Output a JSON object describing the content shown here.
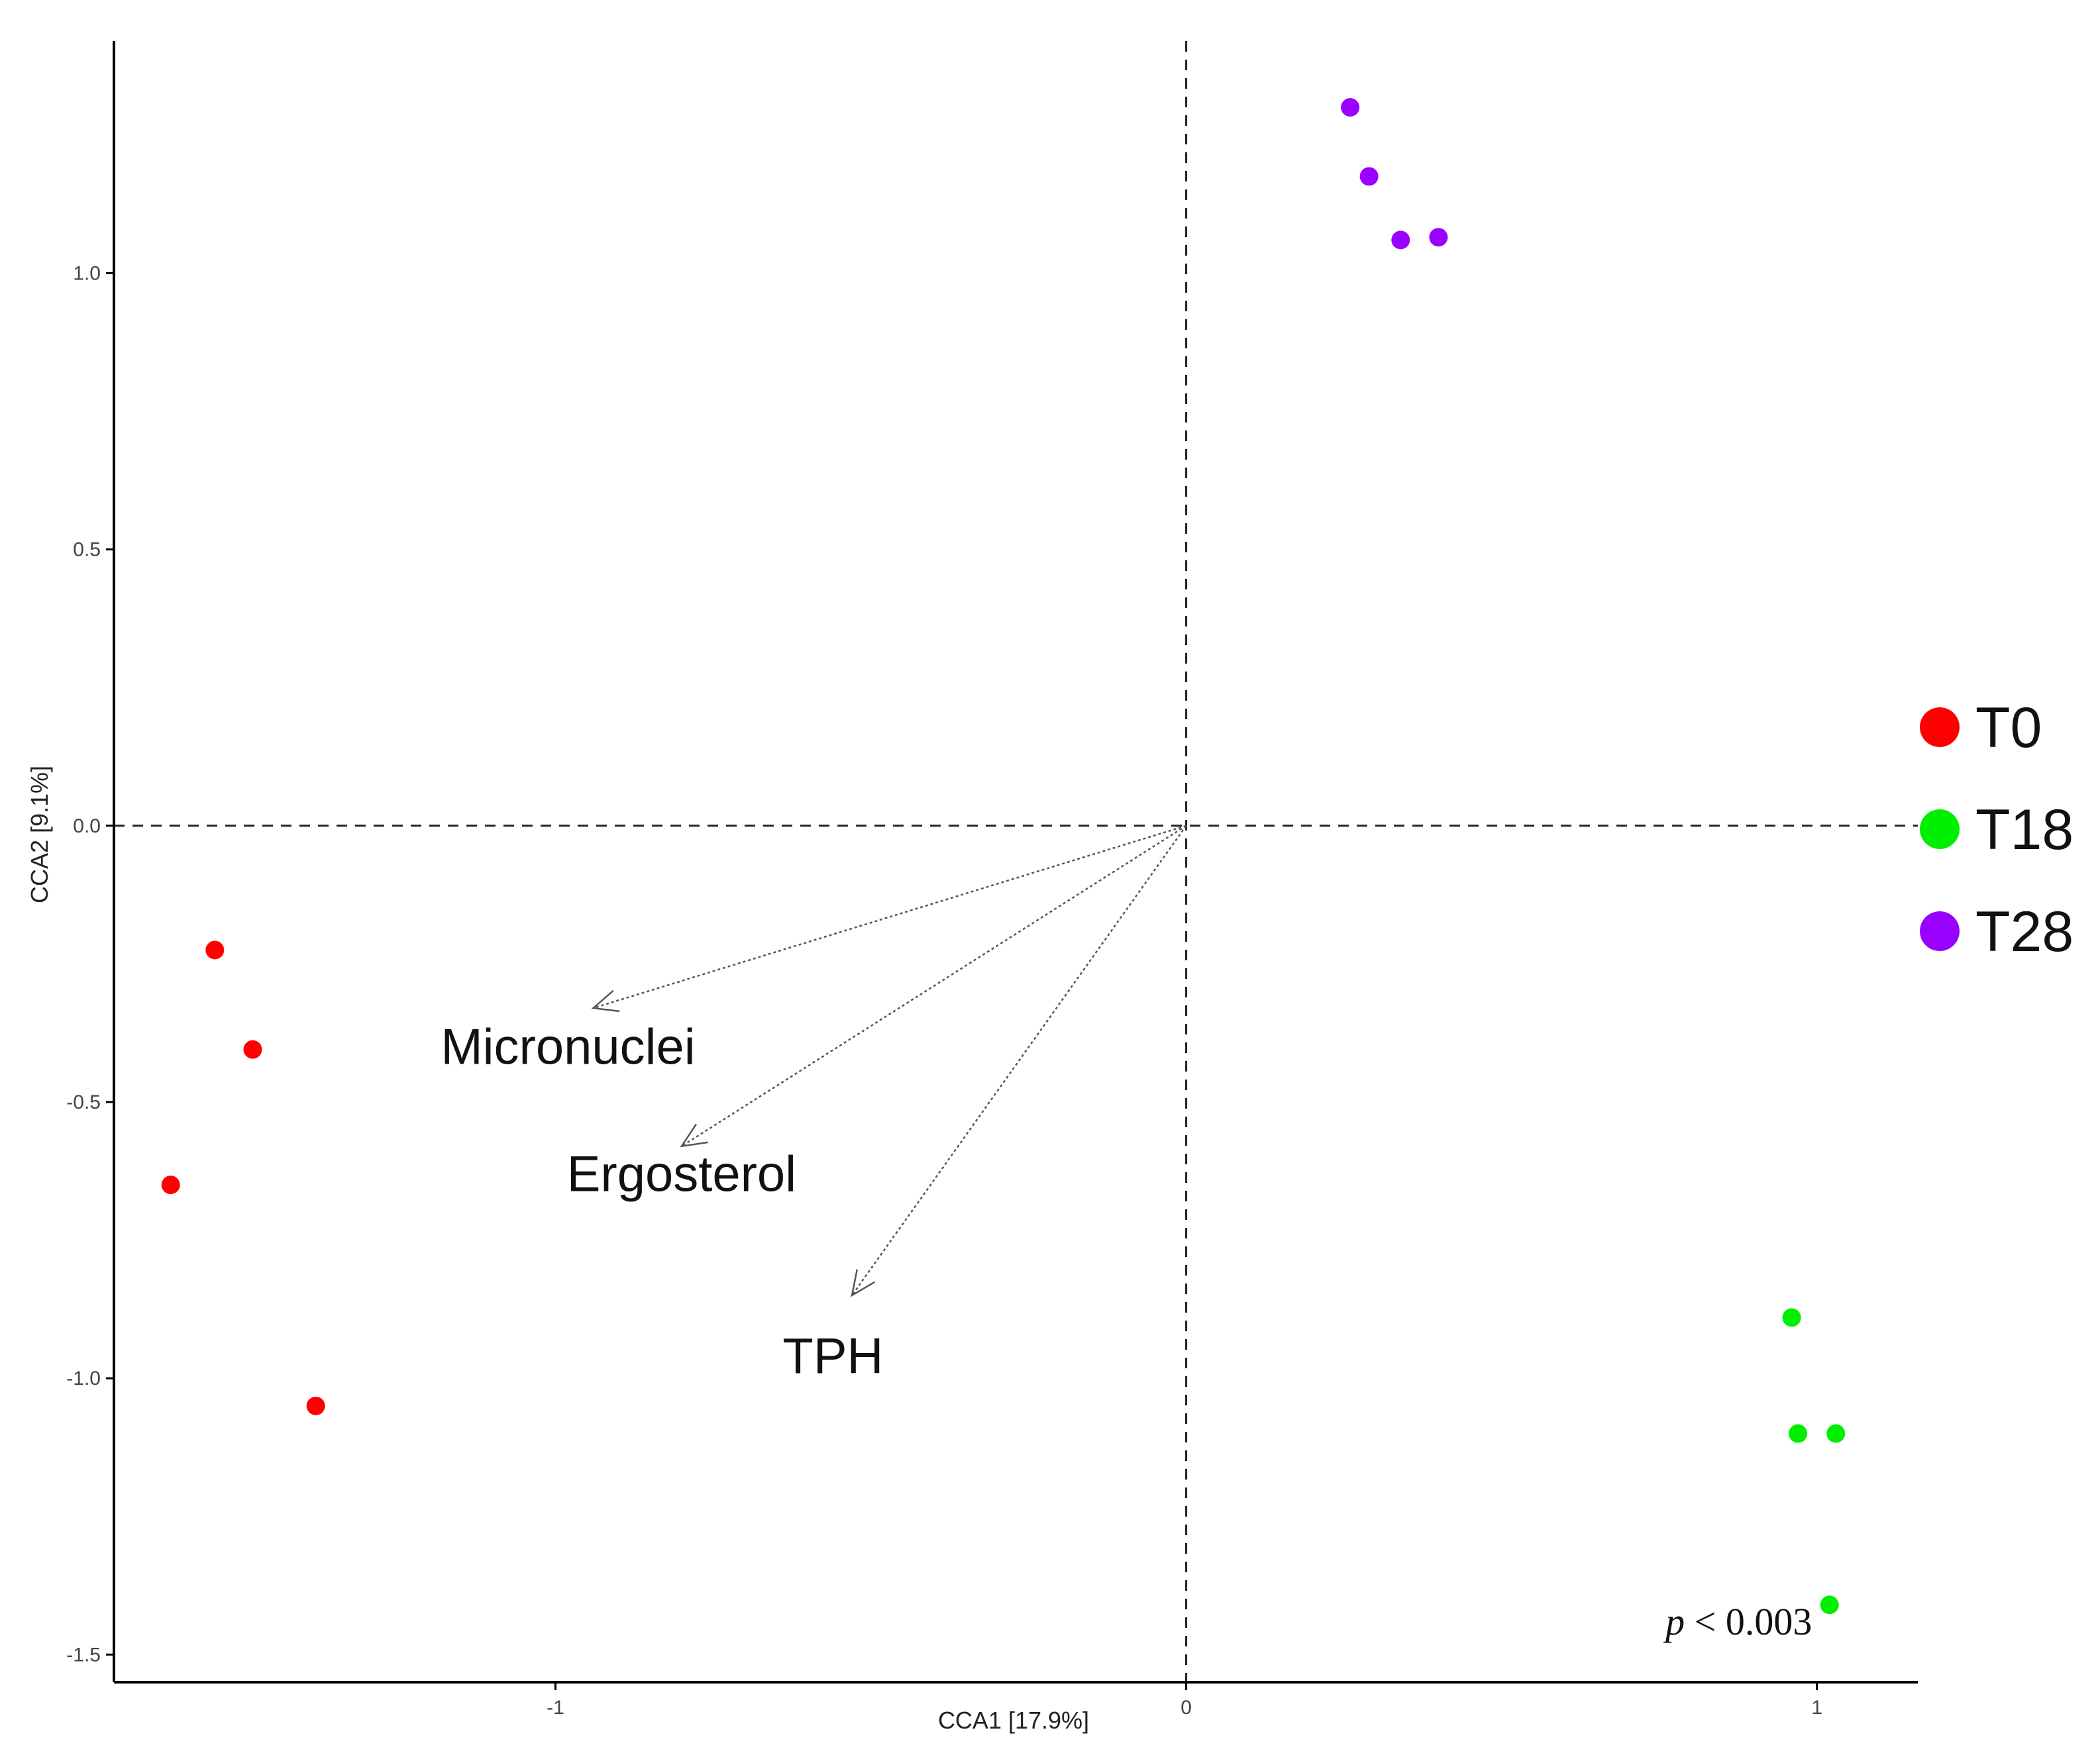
{
  "chart_data": {
    "type": "scatter",
    "xlabel": "CCA1   [17.9%]",
    "ylabel": "CCA2   [9.1%]",
    "xlim": [
      -1.7,
      1.16
    ],
    "ylim": [
      -1.55,
      1.42
    ],
    "x_ticks": [
      -1,
      0,
      1
    ],
    "x_tick_labels": [
      "-1",
      "0",
      "1"
    ],
    "y_ticks": [
      -1.5,
      -1.0,
      -0.5,
      0.0,
      0.5,
      1.0
    ],
    "y_tick_labels": [
      "-1.5",
      "-1.0",
      "-0.5",
      "0.0",
      "0.5",
      "1.0"
    ],
    "grid": false,
    "reference_lines": [
      {
        "axis": "x",
        "value": 0
      },
      {
        "axis": "y",
        "value": 0
      }
    ],
    "legend_position": "right",
    "series": [
      {
        "name": "T0",
        "color": "#ff0000",
        "points": [
          [
            -1.54,
            -0.225
          ],
          [
            -1.48,
            -0.405
          ],
          [
            -1.61,
            -0.65
          ],
          [
            -1.38,
            -1.05
          ]
        ]
      },
      {
        "name": "T18",
        "color": "#00ee00",
        "points": [
          [
            0.96,
            -0.89
          ],
          [
            0.97,
            -1.1
          ],
          [
            1.03,
            -1.1
          ],
          [
            1.02,
            -1.41
          ]
        ]
      },
      {
        "name": "T28",
        "color": "#9900ff",
        "points": [
          [
            0.26,
            1.3
          ],
          [
            0.29,
            1.175
          ],
          [
            0.34,
            1.06
          ],
          [
            0.4,
            1.065
          ]
        ]
      }
    ],
    "vectors": [
      {
        "name": "Micronuclei",
        "end": [
          -0.94,
          -0.33
        ],
        "label_at": [
          -0.98,
          -0.4
        ]
      },
      {
        "name": "Ergosterol",
        "end": [
          -0.8,
          -0.58
        ],
        "label_at": [
          -0.8,
          -0.63
        ]
      },
      {
        "name": "TPH",
        "end": [
          -0.53,
          -0.85
        ],
        "label_at": [
          -0.56,
          -0.96
        ]
      }
    ],
    "annotation": {
      "text_italic": "p",
      "text": " < 0.003",
      "at": [
        0.76,
        -1.44
      ]
    }
  }
}
